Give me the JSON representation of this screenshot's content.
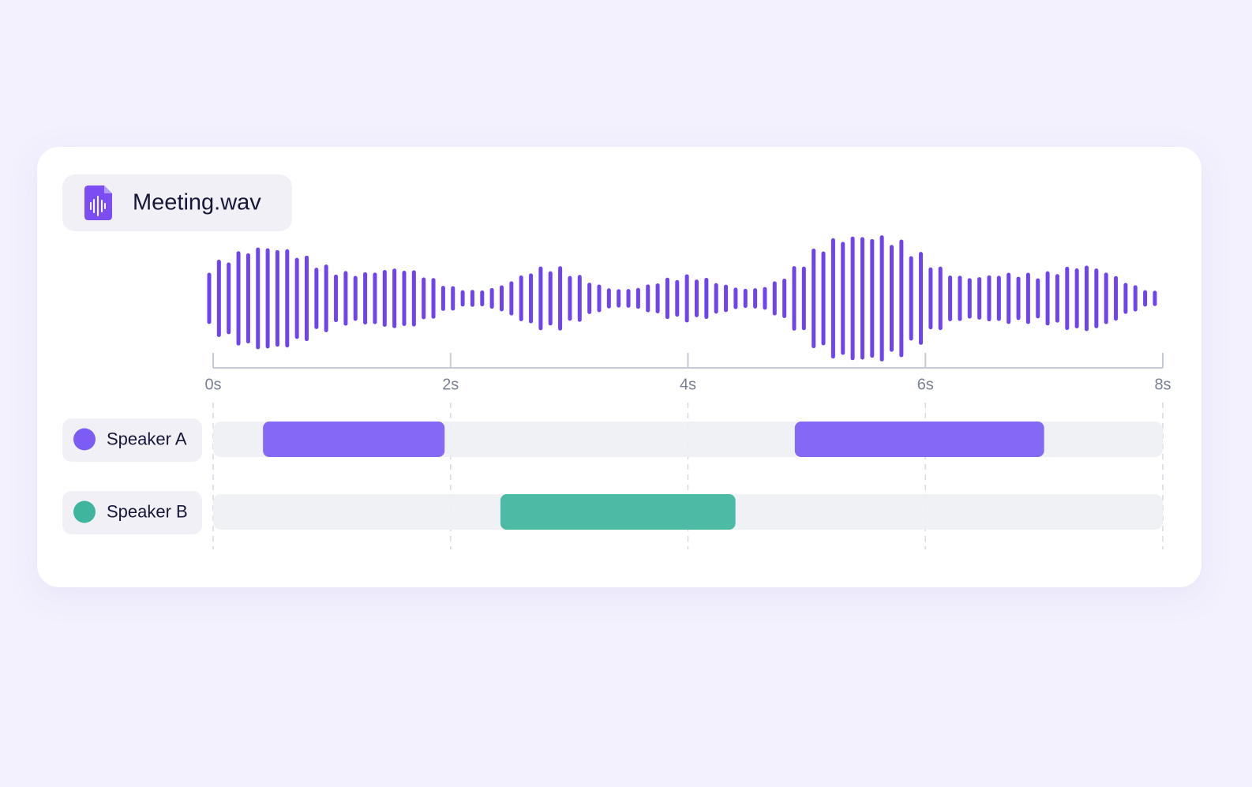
{
  "chart_data": {
    "type": "timeline",
    "title": "Meeting.wav",
    "xlim": [
      0,
      8
    ],
    "xticks": [
      {
        "value": 0,
        "label": "0s"
      },
      {
        "value": 2,
        "label": "2s"
      },
      {
        "value": 4,
        "label": "4s"
      },
      {
        "value": 6,
        "label": "6s"
      },
      {
        "value": 8,
        "label": "8s"
      }
    ],
    "series": [
      {
        "name": "Speaker A",
        "color": "#7c5cf5",
        "segments": [
          [
            0.42,
            1.95
          ],
          [
            4.9,
            7.0
          ]
        ]
      },
      {
        "name": "Speaker B",
        "color": "#3fb59e",
        "segments": [
          [
            2.42,
            4.4
          ]
        ]
      }
    ]
  }
}
